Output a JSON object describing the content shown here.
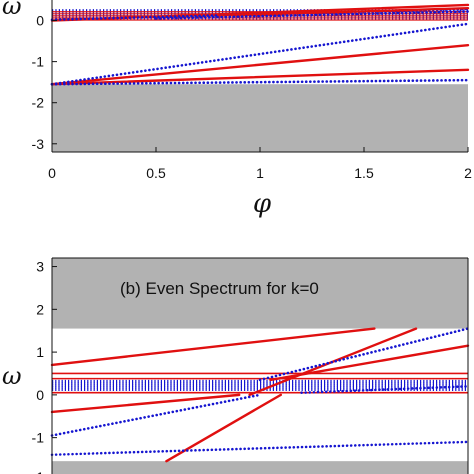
{
  "chart_data": [
    {
      "type": "line",
      "title": "",
      "xlabel": "φ",
      "ylabel": "ω",
      "xlim": [
        0,
        2
      ],
      "ylim": [
        -3.2,
        0.5
      ],
      "xticks": [
        "0",
        "0.5",
        "1",
        "1.5",
        "2"
      ],
      "yticks": [
        "0",
        "-1",
        "-2",
        "-3"
      ],
      "gray_band": {
        "from": -3.2,
        "to": -1.55
      },
      "series": [
        {
          "color": "#e01010",
          "style": "solid",
          "points": [
            [
              0,
              -1.55
            ],
            [
              2,
              -0.6
            ]
          ]
        },
        {
          "color": "#e01010",
          "style": "solid",
          "points": [
            [
              0,
              -1.55
            ],
            [
              2,
              -1.2
            ]
          ]
        },
        {
          "color": "#1515d0",
          "style": "dotted",
          "points": [
            [
              0,
              -1.55
            ],
            [
              2,
              -0.08
            ]
          ]
        },
        {
          "color": "#1515d0",
          "style": "dotted",
          "points": [
            [
              0,
              -1.55
            ],
            [
              2,
              -1.45
            ]
          ]
        },
        {
          "color": "#e01010",
          "style": "solid",
          "points": [
            [
              0,
              0.0
            ],
            [
              2,
              0.38
            ]
          ]
        },
        {
          "color": "#1515d0",
          "style": "dotted",
          "points": [
            [
              0,
              0.02
            ],
            [
              2,
              0.28
            ]
          ]
        },
        {
          "color": "#e01010",
          "style": "solid",
          "points": [
            [
              0.8,
              0.12
            ],
            [
              2,
              0.3
            ]
          ]
        },
        {
          "color": "#1515d0",
          "style": "dotted",
          "points": [
            [
              0.5,
              0.05
            ],
            [
              2,
              0.22
            ]
          ]
        }
      ],
      "flat_band_levels": [
        0.05,
        0.1,
        0.15,
        0.2,
        0.25
      ]
    },
    {
      "type": "line",
      "title": "(b) Even Spectrum for k=0",
      "xlabel": "",
      "ylabel": "ω",
      "xlim": [
        0,
        2
      ],
      "ylim": [
        -1.85,
        3.2
      ],
      "yticks": [
        "3",
        "2",
        "1",
        "0",
        "-1",
        "-1"
      ],
      "gray_band_top": {
        "from": 1.55,
        "to": 3.2
      },
      "gray_band_bottom": {
        "from": -1.85,
        "to": -1.55
      },
      "flat_band_levels": [
        0.12,
        0.17,
        0.22,
        0.27,
        0.32
      ],
      "flat_red_levels": [
        0.05,
        0.38,
        0.5
      ],
      "series": [
        {
          "color": "#e01010",
          "style": "solid",
          "points": [
            [
              0,
              0.7
            ],
            [
              1.55,
              1.55
            ]
          ]
        },
        {
          "color": "#e01010",
          "style": "solid",
          "points": [
            [
              0.95,
              0.0
            ],
            [
              1.75,
              1.55
            ]
          ]
        },
        {
          "color": "#e01010",
          "style": "solid",
          "points": [
            [
              0.55,
              -1.55
            ],
            [
              1.1,
              0.0
            ]
          ]
        },
        {
          "color": "#e01010",
          "style": "solid",
          "points": [
            [
              0,
              -0.4
            ],
            [
              0.9,
              0.0
            ]
          ]
        },
        {
          "color": "#e01010",
          "style": "solid",
          "points": [
            [
              1.05,
              0.35
            ],
            [
              2,
              1.15
            ]
          ]
        },
        {
          "color": "#1515d0",
          "style": "dotted",
          "points": [
            [
              0,
              -0.95
            ],
            [
              1.0,
              0.0
            ]
          ]
        },
        {
          "color": "#1515d0",
          "style": "dotted",
          "points": [
            [
              0,
              -1.4
            ],
            [
              2,
              -1.1
            ]
          ]
        },
        {
          "color": "#1515d0",
          "style": "dotted",
          "points": [
            [
              1.0,
              0.35
            ],
            [
              2,
              1.55
            ]
          ]
        },
        {
          "color": "#1515d0",
          "style": "dotted",
          "points": [
            [
              1.2,
              0.05
            ],
            [
              2,
              0.2
            ]
          ]
        }
      ]
    }
  ]
}
